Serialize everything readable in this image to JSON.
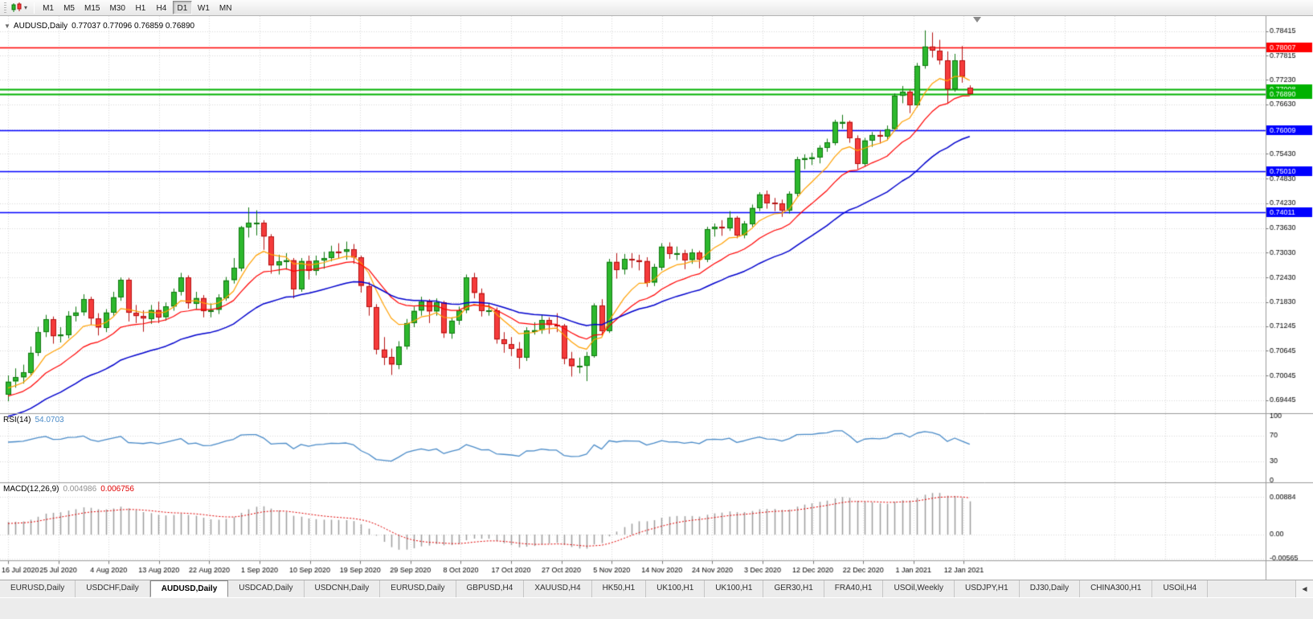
{
  "toolbar": {
    "timeframes": [
      {
        "label": "M1",
        "active": false
      },
      {
        "label": "M5",
        "active": false
      },
      {
        "label": "M15",
        "active": false
      },
      {
        "label": "M30",
        "active": false
      },
      {
        "label": "H1",
        "active": false
      },
      {
        "label": "H4",
        "active": false
      },
      {
        "label": "D1",
        "active": true
      },
      {
        "label": "W1",
        "active": false
      },
      {
        "label": "MN",
        "active": false
      }
    ]
  },
  "chart_header": {
    "symbol": "AUDUSD,Daily",
    "ohlc": "0.77037 0.77096 0.76859 0.76890"
  },
  "chart_data": {
    "type": "candlestick",
    "symbol": "AUDUSD",
    "timeframe": "Daily",
    "x_labels": [
      "16 Jul 2020",
      "25 Jul 2020",
      "4 Aug 2020",
      "13 Aug 2020",
      "22 Aug 2020",
      "1 Sep 2020",
      "10 Sep 2020",
      "19 Sep 2020",
      "29 Sep 2020",
      "8 Oct 2020",
      "17 Oct 2020",
      "27 Oct 2020",
      "5 Nov 2020",
      "14 Nov 2020",
      "24 Nov 2020",
      "3 Dec 2020",
      "12 Dec 2020",
      "22 Dec 2020",
      "1 Jan 2021",
      "12 Jan 2021"
    ],
    "y_axis_labels": [
      "0.78415",
      "0.77815",
      "0.77230",
      "0.76630",
      "0.76030",
      "0.75430",
      "0.74830",
      "0.74230",
      "0.73630",
      "0.73030",
      "0.72430",
      "0.71830",
      "0.71245",
      "0.70645",
      "0.70045",
      "0.69445"
    ],
    "hlines": [
      {
        "price": 0.78007,
        "label": "0.78007",
        "color": "#FF0000",
        "width": 1.4
      },
      {
        "price": 0.77008,
        "label": "0.77008",
        "color": "#00B200",
        "width": 2
      },
      {
        "price": 0.7689,
        "label": "0.76890",
        "color": "#00B200",
        "width": 2
      },
      {
        "price": 0.76009,
        "label": "0.76009",
        "color": "#0000FF",
        "width": 1.4
      },
      {
        "price": 0.7501,
        "label": "0.75010",
        "color": "#0000FF",
        "width": 1.4
      },
      {
        "price": 0.74011,
        "label": "0.74011",
        "color": "#0000FF",
        "width": 1.4
      }
    ],
    "moving_averages": [
      {
        "period": 8,
        "color": "#FFA000"
      },
      {
        "period": 16,
        "color": "#FF0000"
      },
      {
        "period": 34,
        "color": "#0000CD"
      }
    ],
    "rsi": {
      "label": "RSI(14)",
      "value": "54.0703",
      "period": 14,
      "levels": [
        "100",
        "70",
        "30",
        "0"
      ],
      "level_values": [
        100,
        70,
        30,
        0
      ],
      "dotted_levels": [
        70,
        30
      ],
      "color": "#4A8BC8"
    },
    "macd": {
      "label": "MACD(12,26,9)",
      "value_main": "0.004986",
      "value_signal": "0.006756",
      "fast": 12,
      "slow": 26,
      "signal": 9,
      "axis_labels": [
        "0.00884",
        "0.00",
        "-0.00565"
      ],
      "axis_values": [
        0.00884,
        0,
        -0.00565
      ],
      "hist_color": "#9E9E9E",
      "signal_color": "#E00000"
    },
    "colors": {
      "bull": "#2DB82D",
      "bull_border": "#117811",
      "bear": "#F53B3B",
      "bear_border": "#B51212",
      "grid": "#D9D9D9",
      "bg": "#FFFFFF"
    },
    "candles": [
      [
        0.6958,
        0.7005,
        0.6942,
        0.699
      ],
      [
        0.699,
        0.7022,
        0.6975,
        0.7
      ],
      [
        0.7,
        0.7031,
        0.6985,
        0.7012
      ],
      [
        0.7012,
        0.7075,
        0.7005,
        0.706
      ],
      [
        0.706,
        0.7123,
        0.7052,
        0.711
      ],
      [
        0.711,
        0.7152,
        0.7098,
        0.7141
      ],
      [
        0.7141,
        0.7148,
        0.7082,
        0.71
      ],
      [
        0.71,
        0.7122,
        0.7085,
        0.7104
      ],
      [
        0.7104,
        0.7161,
        0.7095,
        0.715
      ],
      [
        0.715,
        0.7172,
        0.7136,
        0.7158
      ],
      [
        0.7158,
        0.7202,
        0.715,
        0.719
      ],
      [
        0.719,
        0.7196,
        0.7128,
        0.7143
      ],
      [
        0.7143,
        0.7156,
        0.7102,
        0.7121
      ],
      [
        0.7121,
        0.7166,
        0.711,
        0.7158
      ],
      [
        0.7158,
        0.7208,
        0.715,
        0.7195
      ],
      [
        0.7195,
        0.7243,
        0.7186,
        0.7237
      ],
      [
        0.7237,
        0.7242,
        0.7136,
        0.7157
      ],
      [
        0.7157,
        0.7176,
        0.7132,
        0.7149
      ],
      [
        0.7149,
        0.7163,
        0.7111,
        0.7143
      ],
      [
        0.7143,
        0.7176,
        0.713,
        0.7164
      ],
      [
        0.7164,
        0.7184,
        0.7132,
        0.7146
      ],
      [
        0.7146,
        0.7182,
        0.7138,
        0.7172
      ],
      [
        0.7172,
        0.7216,
        0.7162,
        0.7208
      ],
      [
        0.7208,
        0.7254,
        0.7199,
        0.7243
      ],
      [
        0.7243,
        0.7248,
        0.7167,
        0.718
      ],
      [
        0.718,
        0.7208,
        0.7166,
        0.7193
      ],
      [
        0.7193,
        0.72,
        0.7146,
        0.7161
      ],
      [
        0.7161,
        0.718,
        0.7146,
        0.7164
      ],
      [
        0.7164,
        0.7202,
        0.7154,
        0.7194
      ],
      [
        0.7194,
        0.7244,
        0.7186,
        0.7236
      ],
      [
        0.7236,
        0.729,
        0.7228,
        0.7266
      ],
      [
        0.7266,
        0.7368,
        0.7258,
        0.7365
      ],
      [
        0.7365,
        0.7413,
        0.734,
        0.7376
      ],
      [
        0.7376,
        0.7406,
        0.7345,
        0.7376
      ],
      [
        0.7376,
        0.7382,
        0.731,
        0.7342
      ],
      [
        0.7342,
        0.7348,
        0.7252,
        0.7272
      ],
      [
        0.7272,
        0.7298,
        0.725,
        0.7282
      ],
      [
        0.7282,
        0.7302,
        0.7262,
        0.7285
      ],
      [
        0.7285,
        0.729,
        0.7192,
        0.7215
      ],
      [
        0.7215,
        0.729,
        0.7208,
        0.7283
      ],
      [
        0.7283,
        0.7296,
        0.7238,
        0.7259
      ],
      [
        0.7259,
        0.7296,
        0.7248,
        0.7284
      ],
      [
        0.7284,
        0.7305,
        0.7264,
        0.729
      ],
      [
        0.729,
        0.732,
        0.7282,
        0.7306
      ],
      [
        0.7306,
        0.7326,
        0.729,
        0.7305
      ],
      [
        0.7305,
        0.733,
        0.7286,
        0.7311
      ],
      [
        0.7311,
        0.7324,
        0.7276,
        0.7291
      ],
      [
        0.7291,
        0.7296,
        0.7206,
        0.7222
      ],
      [
        0.7222,
        0.7232,
        0.715,
        0.7171
      ],
      [
        0.7171,
        0.7178,
        0.7056,
        0.7068
      ],
      [
        0.7068,
        0.7098,
        0.703,
        0.7049
      ],
      [
        0.7049,
        0.707,
        0.7006,
        0.7031
      ],
      [
        0.7031,
        0.7088,
        0.702,
        0.7075
      ],
      [
        0.7075,
        0.7142,
        0.7068,
        0.7132
      ],
      [
        0.7132,
        0.7172,
        0.7122,
        0.7162
      ],
      [
        0.7162,
        0.7196,
        0.715,
        0.7184
      ],
      [
        0.7184,
        0.719,
        0.7132,
        0.716
      ],
      [
        0.716,
        0.7192,
        0.715,
        0.7182
      ],
      [
        0.7182,
        0.7186,
        0.7096,
        0.7107
      ],
      [
        0.7107,
        0.7146,
        0.7094,
        0.7138
      ],
      [
        0.7138,
        0.7172,
        0.7128,
        0.7163
      ],
      [
        0.7163,
        0.725,
        0.7156,
        0.7243
      ],
      [
        0.7243,
        0.7254,
        0.7192,
        0.7205
      ],
      [
        0.7205,
        0.7216,
        0.7148,
        0.7162
      ],
      [
        0.7162,
        0.718,
        0.715,
        0.7163
      ],
      [
        0.7163,
        0.717,
        0.7082,
        0.7092
      ],
      [
        0.7092,
        0.711,
        0.706,
        0.7081
      ],
      [
        0.7081,
        0.7098,
        0.7052,
        0.707
      ],
      [
        0.707,
        0.7086,
        0.7021,
        0.7048
      ],
      [
        0.7048,
        0.7122,
        0.704,
        0.7114
      ],
      [
        0.7114,
        0.7134,
        0.7104,
        0.7115
      ],
      [
        0.7115,
        0.7152,
        0.7106,
        0.7139
      ],
      [
        0.7139,
        0.7146,
        0.7106,
        0.7127
      ],
      [
        0.7127,
        0.7156,
        0.711,
        0.7125
      ],
      [
        0.7125,
        0.713,
        0.7032,
        0.7045
      ],
      [
        0.7045,
        0.7062,
        0.7002,
        0.7027
      ],
      [
        0.7027,
        0.7048,
        0.701,
        0.7028
      ],
      [
        0.7028,
        0.7062,
        0.6991,
        0.7052
      ],
      [
        0.7052,
        0.718,
        0.7048,
        0.7175
      ],
      [
        0.7175,
        0.719,
        0.71,
        0.7113
      ],
      [
        0.7113,
        0.7288,
        0.7108,
        0.7281
      ],
      [
        0.7281,
        0.7302,
        0.724,
        0.7262
      ],
      [
        0.7262,
        0.73,
        0.725,
        0.7288
      ],
      [
        0.7288,
        0.7302,
        0.7266,
        0.7285
      ],
      [
        0.7285,
        0.7298,
        0.726,
        0.7283
      ],
      [
        0.7283,
        0.7292,
        0.722,
        0.723
      ],
      [
        0.723,
        0.7276,
        0.7222,
        0.7268
      ],
      [
        0.7268,
        0.7326,
        0.726,
        0.7318
      ],
      [
        0.7318,
        0.7328,
        0.7288,
        0.73
      ],
      [
        0.73,
        0.7318,
        0.7285,
        0.7302
      ],
      [
        0.7302,
        0.731,
        0.7263,
        0.7285
      ],
      [
        0.7285,
        0.7312,
        0.7276,
        0.7303
      ],
      [
        0.7303,
        0.7308,
        0.7265,
        0.7286
      ],
      [
        0.7286,
        0.7366,
        0.728,
        0.736
      ],
      [
        0.736,
        0.7374,
        0.7342,
        0.7366
      ],
      [
        0.7366,
        0.7382,
        0.7344,
        0.7362
      ],
      [
        0.7362,
        0.7404,
        0.7356,
        0.7388
      ],
      [
        0.7388,
        0.7392,
        0.7338,
        0.7345
      ],
      [
        0.7345,
        0.738,
        0.7338,
        0.7373
      ],
      [
        0.7373,
        0.742,
        0.7366,
        0.7412
      ],
      [
        0.7412,
        0.745,
        0.7404,
        0.7445
      ],
      [
        0.7445,
        0.7454,
        0.741,
        0.7424
      ],
      [
        0.7424,
        0.7436,
        0.7404,
        0.7423
      ],
      [
        0.7423,
        0.7432,
        0.739,
        0.7405
      ],
      [
        0.7405,
        0.7452,
        0.7398,
        0.7446
      ],
      [
        0.7446,
        0.7536,
        0.744,
        0.753
      ],
      [
        0.753,
        0.7542,
        0.7506,
        0.7533
      ],
      [
        0.7533,
        0.7546,
        0.7516,
        0.7535
      ],
      [
        0.7535,
        0.7564,
        0.752,
        0.7558
      ],
      [
        0.7558,
        0.758,
        0.7548,
        0.7571
      ],
      [
        0.7571,
        0.7626,
        0.7564,
        0.7621
      ],
      [
        0.7621,
        0.7638,
        0.7604,
        0.7621
      ],
      [
        0.7621,
        0.7624,
        0.757,
        0.7581
      ],
      [
        0.7581,
        0.7588,
        0.7506,
        0.7519
      ],
      [
        0.7519,
        0.7582,
        0.7512,
        0.7576
      ],
      [
        0.7576,
        0.7596,
        0.756,
        0.7589
      ],
      [
        0.7589,
        0.76,
        0.7568,
        0.7586
      ],
      [
        0.7586,
        0.7612,
        0.7576,
        0.7603
      ],
      [
        0.7603,
        0.769,
        0.7598,
        0.7684
      ],
      [
        0.7684,
        0.7708,
        0.7666,
        0.7694
      ],
      [
        0.7694,
        0.77,
        0.7642,
        0.7661
      ],
      [
        0.7661,
        0.7764,
        0.7656,
        0.7757
      ],
      [
        0.7757,
        0.7843,
        0.775,
        0.7804
      ],
      [
        0.7804,
        0.7838,
        0.7777,
        0.7794
      ],
      [
        0.7794,
        0.782,
        0.776,
        0.777
      ],
      [
        0.777,
        0.7792,
        0.7666,
        0.77
      ],
      [
        0.77,
        0.7786,
        0.7694,
        0.777
      ],
      [
        0.777,
        0.7805,
        0.7716,
        0.773
      ],
      [
        0.77037,
        0.77096,
        0.76859,
        0.7689
      ]
    ]
  },
  "tabs": {
    "items": [
      "EURUSD,Daily",
      "USDCHF,Daily",
      "AUDUSD,Daily",
      "USDCAD,Daily",
      "USDCNH,Daily",
      "EURUSD,Daily",
      "GBPUSD,H4",
      "XAUUSD,H4",
      "HK50,H1",
      "UK100,H1",
      "UK100,H1",
      "GER30,H1",
      "FRA40,H1",
      "USOil,Weekly",
      "USDJPY,H1",
      "DJ30,Daily",
      "CHINA300,H1",
      "USOil,H4"
    ],
    "active_index": 2,
    "scroll_left_icon": "◀"
  }
}
